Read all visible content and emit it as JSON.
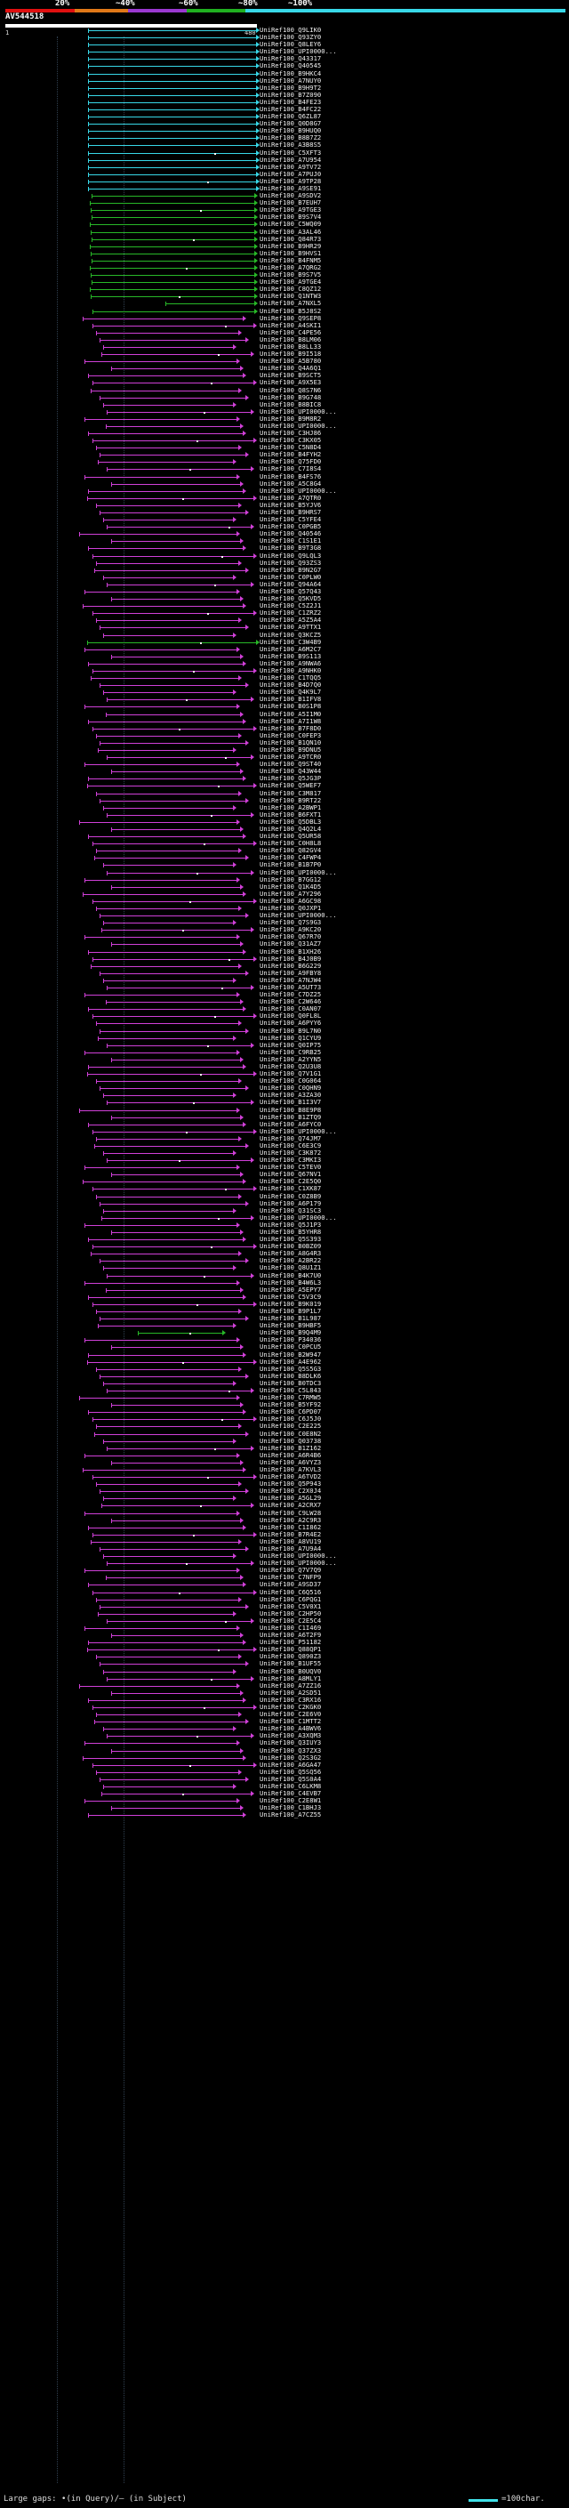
{
  "scale": {
    "labels": [
      "20%",
      "~40%",
      "~60%",
      "~80%",
      "~100%"
    ],
    "colors": [
      "#e01010",
      "#e07818",
      "#9a38d0",
      "#20b020",
      "#38d8e8"
    ]
  },
  "query": {
    "id": "AV544518",
    "start": "1",
    "end": "480"
  },
  "hits": [
    "UniRef100_Q9LIK0",
    "UniRef100_Q93ZY0",
    "UniRef100_Q8LEY6",
    "UniRef100_UPI0000...",
    "UniRef100_Q43317",
    "UniRef100_Q40545",
    "UniRef100_B9HKC4",
    "UniRef100_A7NUY0",
    "UniRef100_B9H9T2",
    "UniRef100_B7Z090",
    "UniRef100_B4FE23",
    "UniRef100_B4FC22",
    "UniRef100_Q6ZL87",
    "UniRef100_Q0D8G7",
    "UniRef100_B9HUQ0",
    "UniRef100_B8B7Z2",
    "UniRef100_A3B8S5",
    "UniRef100_C5XFT3",
    "UniRef100_A7U954",
    "UniRef100_A9TV72",
    "UniRef100_A7PUJ0",
    "UniRef100_A9TP28",
    "UniRef100_A9SE91",
    "UniRef100_A9SDV2",
    "UniRef100_B7EUH7",
    "UniRef100_A9TGE3",
    "UniRef100_B9S7V4",
    "UniRef100_C5WQ09",
    "UniRef100_A3AL46",
    "UniRef100_Q84R73",
    "UniRef100_B9HR29",
    "UniRef100_B9HVS1",
    "UniRef100_B4FNM5",
    "UniRef100_A7QRG2",
    "UniRef100_B9S7V5",
    "UniRef100_A9TGE4",
    "UniRef100_C8QZ12",
    "UniRef100_Q1NTW3",
    "UniRef100_A7NXL5",
    "UniRef100_B5J8S2",
    "UniRef100_Q9SEP8",
    "UniRef100_A4SKI1",
    "UniRef100_C4PE56",
    "UniRef100_B8LM06",
    "UniRef100_B8LL33",
    "UniRef100_B9I518",
    "UniRef100_A5B780",
    "UniRef100_Q4A6Q1",
    "UniRef100_B9SCT5",
    "UniRef100_A9X5E3",
    "UniRef100_Q8S7N6",
    "UniRef100_B9G748",
    "UniRef100_B8BIC8",
    "UniRef100_UPI0000...",
    "UniRef100_B9M8R2",
    "UniRef100_UPI0000...",
    "UniRef100_C3HJ86",
    "UniRef100_C3KX05",
    "UniRef100_C5N8D4",
    "UniRef100_B4FYH2",
    "UniRef100_Q75FD0",
    "UniRef100_C7I8S4",
    "UniRef100_B4FS76",
    "UniRef100_A5C8G4",
    "UniRef100_UPI0000...",
    "UniRef100_A7QTR0",
    "UniRef100_B5YJV6",
    "UniRef100_B9HRS7",
    "UniRef100_C5YFE4",
    "UniRef100_C0PGB5",
    "UniRef100_Q40546",
    "UniRef100_C1S1E1",
    "UniRef100_B9T3G8",
    "UniRef100_Q9LQL3",
    "UniRef100_Q93ZS3",
    "UniRef100_B9N2G7",
    "UniRef100_C0PLW0",
    "UniRef100_Q94A64",
    "UniRef100_Q57Q43",
    "UniRef100_Q5KVD5",
    "UniRef100_C5Z2J1",
    "UniRef100_C1ZRZ2",
    "UniRef100_A5Z5A4",
    "UniRef100_A9TTX1",
    "UniRef100_Q3KCZ5",
    "UniRef100_C3W4B9",
    "UniRef100_A6M2C7",
    "UniRef100_B9S113",
    "UniRef100_A9NWA6",
    "UniRef100_A9NHK0",
    "UniRef100_C1TQQ5",
    "UniRef100_B4D7Q0",
    "UniRef100_Q4K9L7",
    "UniRef100_B1IFV8",
    "UniRef100_B0S1P8",
    "UniRef100_A5I1M0",
    "UniRef100_A7I1W8",
    "UniRef100_B7F8D0",
    "UniRef100_C0FEP3",
    "UniRef100_B1QN10",
    "UniRef100_B9DNU5",
    "UniRef100_A9TCR0",
    "UniRef100_Q9ST40",
    "UniRef100_Q43W44",
    "UniRef100_Q5JG3P",
    "UniRef100_Q5WEF7",
    "UniRef100_C3M817",
    "UniRef100_B9RT22",
    "UniRef100_A2BWP1",
    "UniRef100_B6FXT1",
    "UniRef100_Q5DBL3",
    "UniRef100_Q4Q2L4",
    "UniRef100_Q5UR58",
    "UniRef100_C0H8L8",
    "UniRef100_Q82GV4",
    "UniRef100_C4FWP4",
    "UniRef100_B1B7P0",
    "UniRef100_UPI0000...",
    "UniRef100_B7GG12",
    "UniRef100_Q1K4D5",
    "UniRef100_A7Y296",
    "UniRef100_A6GC98",
    "UniRef100_Q0JXP1",
    "UniRef100_UPI0000...",
    "UniRef100_Q7S9G3",
    "UniRef100_A9KC20",
    "UniRef100_Q67R70",
    "UniRef100_Q31AZ7",
    "UniRef100_B1XH26",
    "UniRef100_B4J0B9",
    "UniRef100_B6G229",
    "UniRef100_A9FBY8",
    "UniRef100_A7NJW4",
    "UniRef100_A5UT73",
    "UniRef100_C7DZ25",
    "UniRef100_C2W646",
    "UniRef100_C0AN07",
    "UniRef100_Q0FL8L",
    "UniRef100_A6PYY6",
    "UniRef100_B9L7N0",
    "UniRef100_Q1CYU9",
    "UniRef100_Q0IP75",
    "UniRef100_C9RB25",
    "UniRef100_A2YYN5",
    "UniRef100_Q2U3U8",
    "UniRef100_Q7V1G1",
    "UniRef100_C0G064",
    "UniRef100_C0QHN9",
    "UniRef100_A3ZA30",
    "UniRef100_B1I3V7",
    "UniRef100_B8E9P8",
    "UniRef100_B1ZTQ9",
    "UniRef100_A6FYC0",
    "UniRef100_UPI0000...",
    "UniRef100_Q74JM7",
    "UniRef100_C6E3C9",
    "UniRef100_C3K872",
    "UniRef100_C3MKI3",
    "UniRef100_C5TEV0",
    "UniRef100_Q67NV1",
    "UniRef100_C2E5Q0",
    "UniRef100_C1XK87",
    "UniRef100_C0Z8B9",
    "UniRef100_A6P179",
    "UniRef100_Q31SC3",
    "UniRef100_UPI0000...",
    "UniRef100_Q5J1P3",
    "UniRef100_B5YHR8",
    "UniRef100_Q5S393",
    "UniRef100_B0BZ09",
    "UniRef100_A8G4R3",
    "UniRef100_A2BR22",
    "UniRef100_Q8U1Z1",
    "UniRef100_B4K7U0",
    "UniRef100_B4W6L3",
    "UniRef100_A5EPY7",
    "UniRef100_C5V3C9",
    "UniRef100_B9K019",
    "UniRef100_B9P1L7",
    "UniRef100_B1L987",
    "UniRef100_B9HBF5",
    "UniRef100_B9Q4M9",
    "UniRef100_P34036",
    "UniRef100_C0PCU5",
    "UniRef100_B2W947",
    "UniRef100_A4E962",
    "UniRef100_Q5S5G3",
    "UniRef100_B8DLK6",
    "UniRef100_B0TDC3",
    "UniRef100_C5L843",
    "UniRef100_C7RMW5",
    "UniRef100_B5YF92",
    "UniRef100_C6PD07",
    "UniRef100_C6J5J0",
    "UniRef100_C2E225",
    "UniRef100_C0E8N2",
    "UniRef100_Q03738",
    "UniRef100_B1Z162",
    "UniRef100_A6R4B6",
    "UniRef100_A6VYZ3",
    "UniRef100_A7KVL3",
    "UniRef100_A6TVD2",
    "UniRef100_Q5P943",
    "UniRef100_C2X0J4",
    "UniRef100_A5GL29",
    "UniRef100_A2CRX7",
    "UniRef100_C9LW28",
    "UniRef100_A2C9R3",
    "UniRef100_C1I862",
    "UniRef100_B7R4E2",
    "UniRef100_A8VU19",
    "UniRef100_A7U9A4",
    "UniRef100_UPI0000...",
    "UniRef100_UPI0000...",
    "UniRef100_Q7V7Q9",
    "UniRef100_C7NFP9",
    "UniRef100_A9SD37",
    "UniRef100_C6Q516",
    "UniRef100_C6PQG1",
    "UniRef100_C5V0X1",
    "UniRef100_C2HP50",
    "UniRef100_C2E5C4",
    "UniRef100_C1I469",
    "UniRef100_A6T2F9",
    "UniRef100_P51182",
    "UniRef100_Q88QP1",
    "UniRef100_Q890Z3",
    "UniRef100_B1UF55",
    "UniRef100_B0UQV0",
    "UniRef100_A8MLY1",
    "UniRef100_A7ZZ16",
    "UniRef100_A2SD51",
    "UniRef100_C3RX16",
    "UniRef100_C2KGK0",
    "UniRef100_C2E6V0",
    "UniRef100_C1MTT2",
    "UniRef100_A4BWV6",
    "UniRef100_A3XQM3",
    "UniRef100_Q3IUY3",
    "UniRef100_Q37ZX3",
    "UniRef100_Q2S3G2",
    "UniRef100_A6GA47",
    "UniRef100_Q5SQ56",
    "UniRef100_Q5S0A4",
    "UniRef100_C6LKM8",
    "UniRef100_C4EVB7",
    "UniRef100_C2E8W1",
    "UniRef100_C1BHJ3",
    "UniRef100_A7CZ55"
  ],
  "footer": {
    "legend": "Large gaps: •(in Query)/– (in Subject)",
    "scale_text": "=100char."
  }
}
